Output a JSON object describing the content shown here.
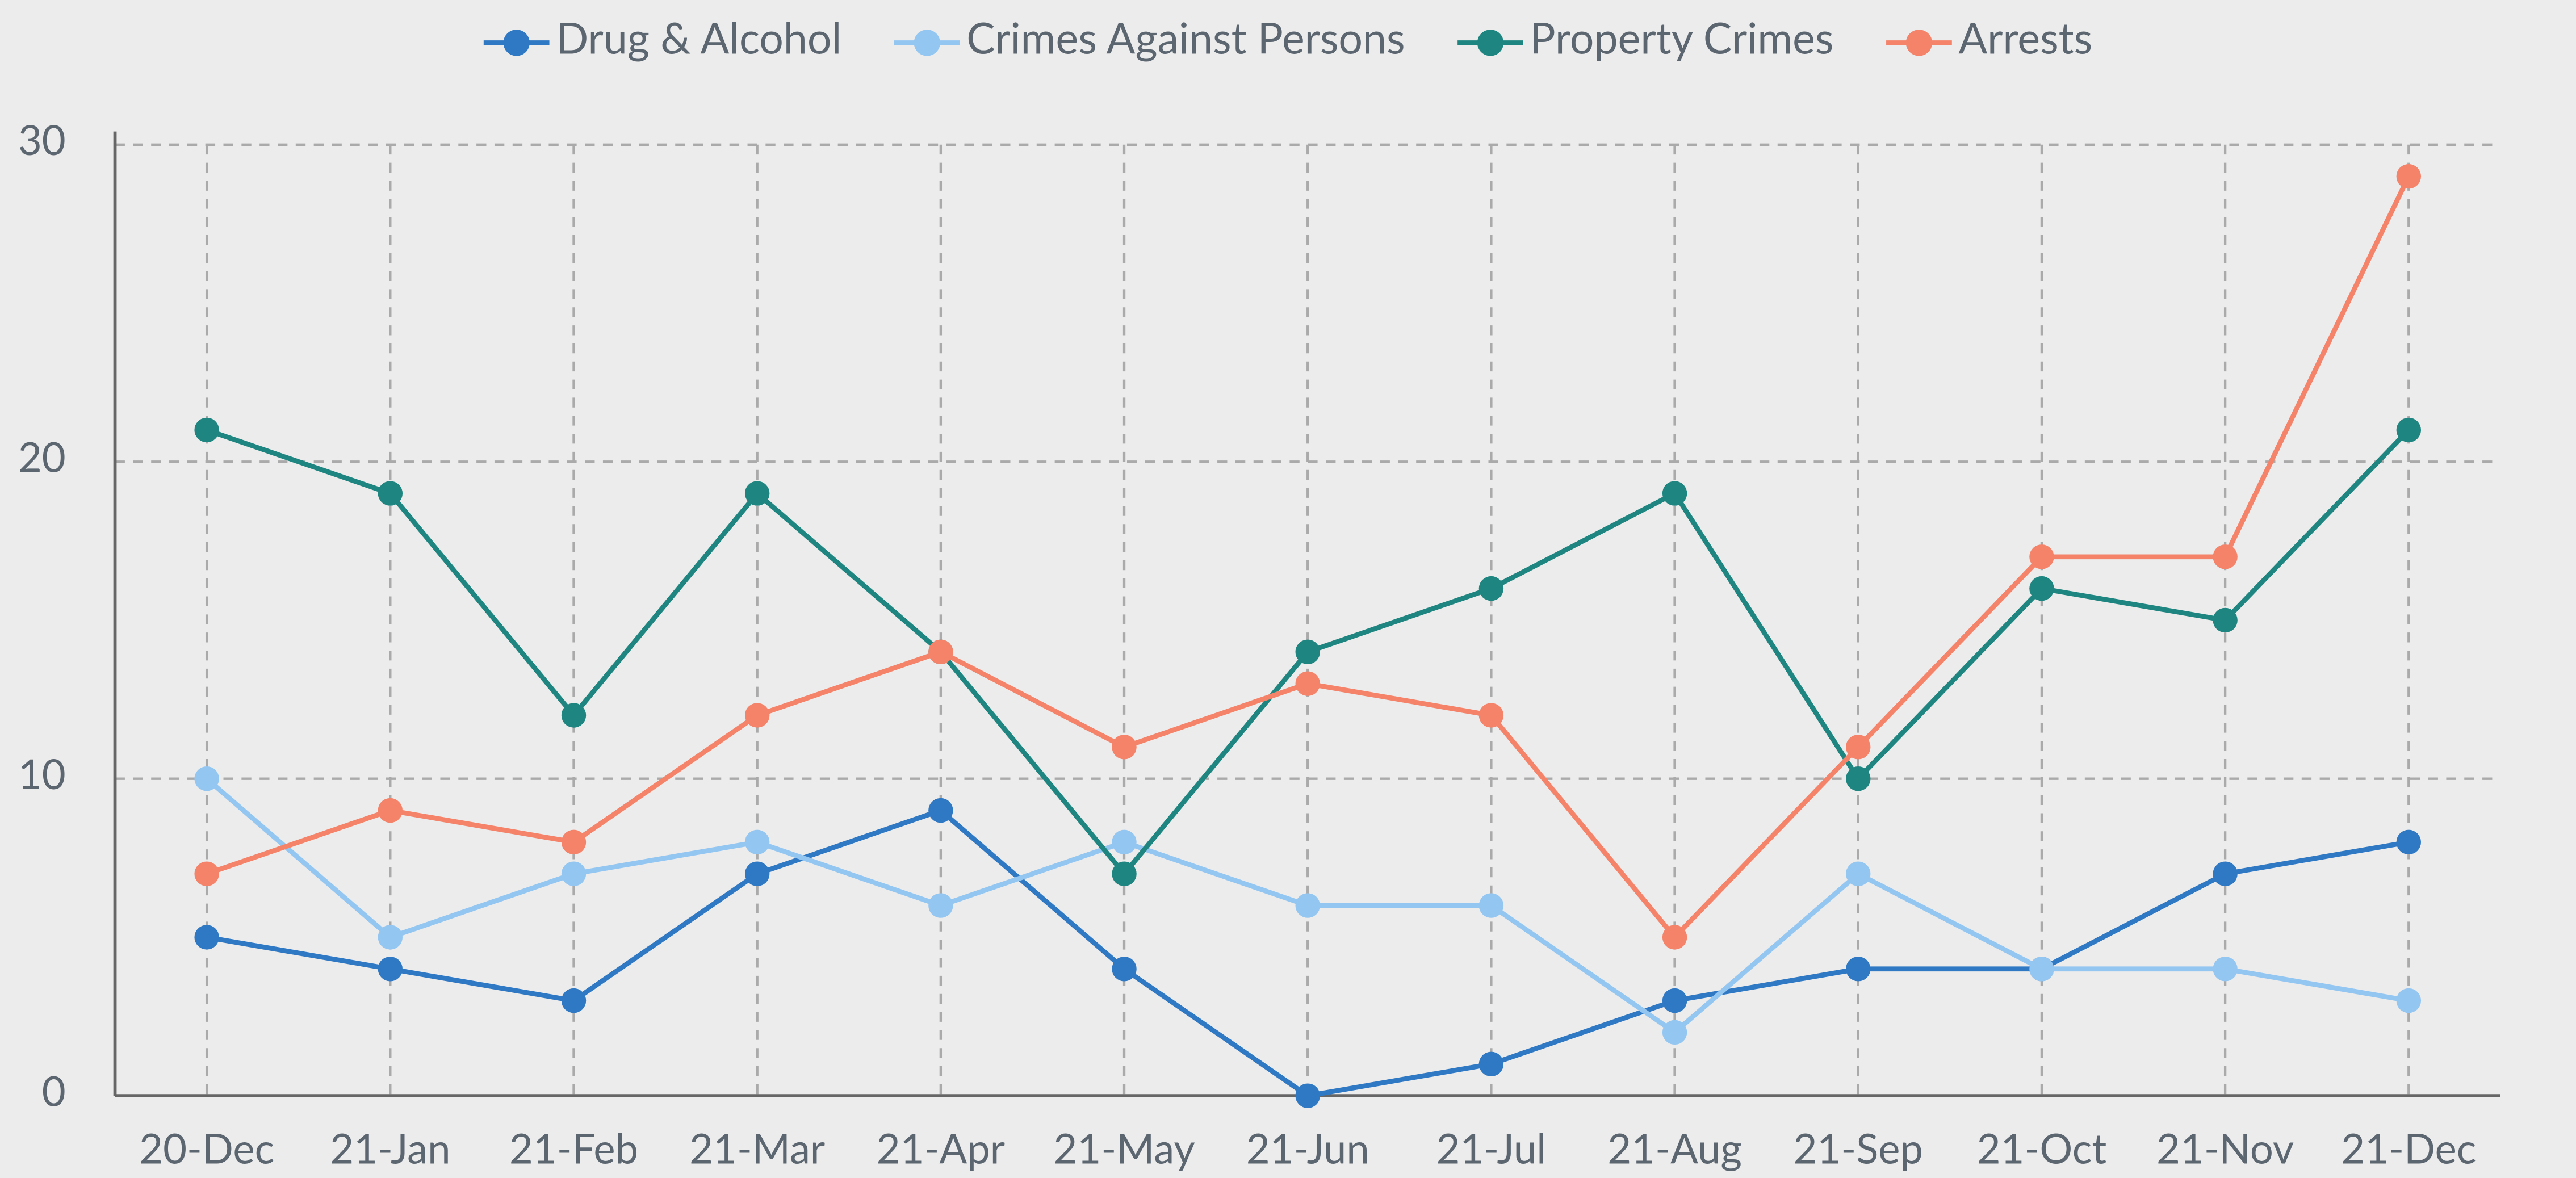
{
  "chart_data": {
    "type": "line",
    "categories": [
      "20-Dec",
      "21-Jan",
      "21-Feb",
      "21-Mar",
      "21-Apr",
      "21-May",
      "21-Jun",
      "21-Jul",
      "21-Aug",
      "21-Sep",
      "21-Oct",
      "21-Nov",
      "21-Dec"
    ],
    "series": [
      {
        "name": "Drug & Alcohol",
        "color": "#2f78c4",
        "values": [
          5,
          4,
          3,
          7,
          9,
          4,
          0,
          1,
          3,
          4,
          4,
          7,
          8
        ]
      },
      {
        "name": "Crimes Against Persons",
        "color": "#94c6f2",
        "values": [
          10,
          5,
          7,
          8,
          6,
          8,
          6,
          6,
          2,
          7,
          4,
          4,
          3
        ]
      },
      {
        "name": "Property Crimes",
        "color": "#1f8580",
        "values": [
          21,
          19,
          12,
          19,
          14,
          7,
          14,
          16,
          19,
          10,
          16,
          15,
          21
        ]
      },
      {
        "name": "Arrests",
        "color": "#f4836a",
        "values": [
          7,
          9,
          8,
          12,
          14,
          11,
          13,
          12,
          5,
          11,
          17,
          17,
          29
        ]
      }
    ],
    "ylim": [
      0,
      30
    ],
    "yticks": [
      0,
      10,
      20,
      30
    ],
    "grid": true,
    "legend": "top"
  }
}
